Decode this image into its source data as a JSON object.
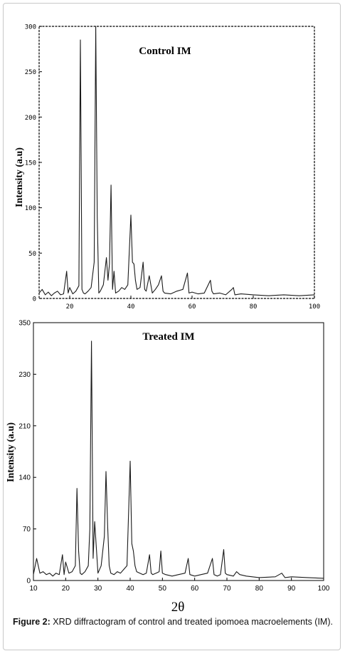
{
  "chart_data": [
    {
      "type": "line",
      "title": "Control IM",
      "ylabel": "Intensity (a.u)",
      "xlabel": "",
      "xlim": [
        10,
        100
      ],
      "ylim": [
        0,
        300
      ],
      "x_ticks": [
        "20",
        "40",
        "60",
        "80",
        "100"
      ],
      "y_ticks": [
        "0",
        "50",
        "100",
        "150",
        "200",
        "250",
        "300"
      ],
      "style": "ink",
      "series": [
        {
          "x": [
            10,
            11,
            12,
            13,
            14,
            15,
            16,
            17,
            18,
            19,
            19.5,
            20,
            21,
            22,
            23,
            23.5,
            24,
            24.5,
            25,
            26,
            27,
            28,
            28.5,
            29,
            29.5,
            30,
            31,
            32,
            32.5,
            33,
            33.5,
            34,
            34.5,
            35,
            36,
            37,
            38,
            39,
            40,
            40.5,
            41,
            41.5,
            42,
            43,
            44,
            44.5,
            45,
            46,
            47,
            48,
            49,
            50,
            50.5,
            51,
            53,
            55,
            57,
            58.5,
            59,
            60,
            62,
            64,
            66,
            66.5,
            67,
            69,
            71,
            73,
            73.5,
            74,
            76,
            80,
            85,
            90,
            95,
            100
          ],
          "y": [
            6,
            10,
            4,
            7,
            3,
            6,
            8,
            4,
            5,
            30,
            6,
            12,
            5,
            8,
            14,
            285,
            10,
            6,
            5,
            8,
            12,
            40,
            300,
            90,
            6,
            8,
            15,
            45,
            20,
            38,
            125,
            10,
            30,
            6,
            8,
            12,
            10,
            15,
            92,
            40,
            38,
            20,
            10,
            12,
            40,
            10,
            8,
            25,
            6,
            10,
            15,
            25,
            8,
            6,
            5,
            8,
            10,
            28,
            6,
            7,
            5,
            6,
            20,
            8,
            5,
            6,
            4,
            10,
            12,
            4,
            5,
            4,
            3,
            4,
            3,
            4
          ]
        }
      ]
    },
    {
      "type": "line",
      "title": "Treated IM",
      "ylabel": "Intensity (a.u)",
      "xlabel": "2θ",
      "xlim": [
        10,
        100
      ],
      "ylim": [
        0,
        350
      ],
      "x_ticks": [
        "10",
        "20",
        "30",
        "40",
        "50",
        "60",
        "70",
        "80",
        "90",
        "100"
      ],
      "y_ticks": [
        "0",
        "70",
        "140",
        "210",
        "230",
        "350"
      ],
      "style": "ink",
      "series": [
        {
          "x": [
            10,
            11,
            12,
            13,
            14,
            15,
            16,
            17,
            18,
            19,
            19.5,
            20,
            21,
            22,
            23,
            23.5,
            24,
            24.5,
            25,
            26,
            27,
            27.5,
            28,
            28.5,
            29,
            30,
            31,
            32,
            32.5,
            33,
            33.5,
            34,
            35,
            36,
            37,
            38,
            39,
            40,
            40.5,
            41,
            41.5,
            42,
            43,
            44,
            45,
            46,
            46.5,
            47,
            48,
            49,
            49.5,
            50,
            51,
            53,
            55,
            57,
            58,
            58.5,
            60,
            62,
            64,
            65.5,
            66,
            67,
            68,
            69,
            69.5,
            70,
            72,
            73,
            74,
            76,
            80,
            85,
            87,
            88,
            90,
            95,
            100
          ],
          "y": [
            8,
            30,
            10,
            12,
            8,
            10,
            6,
            10,
            8,
            35,
            8,
            25,
            10,
            12,
            20,
            125,
            40,
            10,
            8,
            12,
            20,
            70,
            325,
            30,
            80,
            10,
            20,
            60,
            148,
            75,
            20,
            10,
            8,
            12,
            10,
            15,
            20,
            162,
            50,
            40,
            20,
            12,
            10,
            8,
            10,
            35,
            10,
            8,
            10,
            12,
            40,
            10,
            8,
            6,
            8,
            10,
            30,
            8,
            6,
            8,
            10,
            30,
            8,
            6,
            8,
            42,
            10,
            8,
            6,
            12,
            8,
            6,
            4,
            5,
            10,
            4,
            5,
            4,
            3
          ]
        }
      ]
    }
  ],
  "caption": {
    "label": "Figure 2:",
    "text": "XRD diffractogram of control and treated ipomoea macroelements (IM)."
  }
}
